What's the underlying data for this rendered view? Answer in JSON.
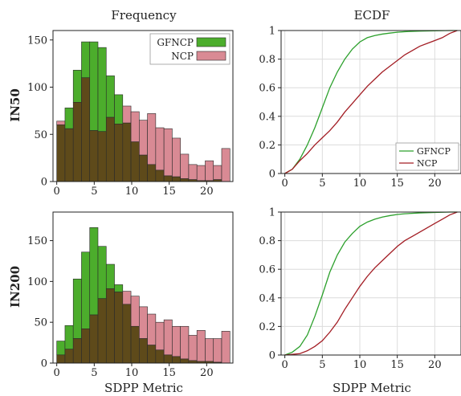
{
  "figure": {
    "col_titles": [
      "Frequency",
      "ECDF"
    ],
    "row_labels": [
      "IN50",
      "IN200"
    ],
    "xlabel": "SDPP Metric"
  },
  "colors": {
    "gfncp_fill": "#4cad2c",
    "ncp_fill": "#d98a94",
    "overlap_fill": "#5e4a1a",
    "gfncp_line": "#2ca02c",
    "ncp_line": "#a31d24"
  },
  "chart_data": [
    {
      "type": "bar",
      "panel": "IN50-frequency",
      "bin_width": 1.1,
      "x_start": 0,
      "xlim": [
        -0.5,
        23.5
      ],
      "ylim": [
        0,
        160
      ],
      "xticks": [
        0,
        5,
        10,
        15,
        20
      ],
      "yticks": [
        0,
        50,
        100,
        150
      ],
      "legend": "top-right",
      "series": [
        {
          "name": "GFNCP",
          "values": [
            60,
            78,
            118,
            148,
            148,
            142,
            112,
            92,
            62,
            42,
            28,
            18,
            12,
            6,
            5,
            3,
            2,
            1,
            1,
            2,
            0
          ]
        },
        {
          "name": "NCP",
          "values": [
            64,
            56,
            84,
            110,
            54,
            53,
            68,
            61,
            80,
            74,
            65,
            72,
            57,
            56,
            46,
            29,
            18,
            17,
            22,
            17,
            35
          ]
        }
      ]
    },
    {
      "type": "line",
      "panel": "IN50-ecdf",
      "xlim": [
        -0.5,
        23.5
      ],
      "ylim": [
        0,
        1
      ],
      "xticks": [
        0,
        5,
        10,
        15,
        20
      ],
      "yticks": [
        0,
        0.2,
        0.4,
        0.6,
        0.8,
        1
      ],
      "grid": true,
      "legend": "bottom-right",
      "series": [
        {
          "name": "GFNCP",
          "x": [
            0,
            1,
            2,
            3,
            4,
            5,
            6,
            7,
            8,
            9,
            10,
            11,
            12,
            13,
            14,
            15,
            16,
            18,
            20,
            22,
            23
          ],
          "y": [
            0,
            0.03,
            0.1,
            0.2,
            0.32,
            0.46,
            0.6,
            0.71,
            0.8,
            0.87,
            0.92,
            0.95,
            0.965,
            0.975,
            0.982,
            0.988,
            0.992,
            0.996,
            0.998,
            1,
            1
          ]
        },
        {
          "name": "NCP",
          "x": [
            0,
            1,
            2,
            3,
            4,
            5,
            6,
            7,
            8,
            9,
            10,
            11,
            12,
            13,
            14,
            15,
            16,
            17,
            18,
            19,
            20,
            21,
            22,
            23
          ],
          "y": [
            0,
            0.03,
            0.09,
            0.14,
            0.2,
            0.25,
            0.3,
            0.36,
            0.43,
            0.49,
            0.55,
            0.61,
            0.66,
            0.71,
            0.75,
            0.79,
            0.83,
            0.86,
            0.89,
            0.91,
            0.93,
            0.95,
            0.98,
            1
          ]
        }
      ]
    },
    {
      "type": "bar",
      "panel": "IN200-frequency",
      "bin_width": 1.1,
      "x_start": 0,
      "xlim": [
        -0.5,
        23.5
      ],
      "ylim": [
        0,
        185
      ],
      "xticks": [
        0,
        5,
        10,
        15,
        20
      ],
      "yticks": [
        0,
        50,
        100,
        150
      ],
      "series": [
        {
          "name": "GFNCP",
          "values": [
            27,
            46,
            103,
            136,
            166,
            143,
            121,
            96,
            72,
            45,
            30,
            22,
            16,
            10,
            8,
            5,
            3,
            2,
            2,
            1,
            0
          ]
        },
        {
          "name": "NCP",
          "values": [
            10,
            17,
            30,
            42,
            59,
            79,
            91,
            87,
            88,
            82,
            69,
            60,
            50,
            53,
            45,
            45,
            34,
            40,
            30,
            30,
            39
          ]
        }
      ]
    },
    {
      "type": "line",
      "panel": "IN200-ecdf",
      "xlim": [
        -0.5,
        23.5
      ],
      "ylim": [
        0,
        1
      ],
      "xticks": [
        0,
        5,
        10,
        15,
        20
      ],
      "yticks": [
        0,
        0.2,
        0.4,
        0.6,
        0.8,
        1
      ],
      "grid": true,
      "series": [
        {
          "name": "GFNCP",
          "x": [
            0,
            1,
            2,
            3,
            4,
            5,
            6,
            7,
            8,
            9,
            10,
            11,
            12,
            13,
            14,
            15,
            16,
            18,
            20,
            22,
            23
          ],
          "y": [
            0,
            0.02,
            0.06,
            0.14,
            0.27,
            0.42,
            0.58,
            0.7,
            0.79,
            0.85,
            0.9,
            0.93,
            0.95,
            0.965,
            0.975,
            0.983,
            0.988,
            0.994,
            0.997,
            1,
            1
          ]
        },
        {
          "name": "NCP",
          "x": [
            0,
            1,
            2,
            3,
            4,
            5,
            6,
            7,
            8,
            9,
            10,
            11,
            12,
            13,
            14,
            15,
            16,
            17,
            18,
            19,
            20,
            21,
            22,
            23
          ],
          "y": [
            0,
            0.005,
            0.01,
            0.03,
            0.06,
            0.1,
            0.16,
            0.23,
            0.32,
            0.4,
            0.48,
            0.55,
            0.61,
            0.66,
            0.71,
            0.76,
            0.8,
            0.83,
            0.86,
            0.89,
            0.92,
            0.95,
            0.98,
            1
          ]
        }
      ]
    }
  ]
}
